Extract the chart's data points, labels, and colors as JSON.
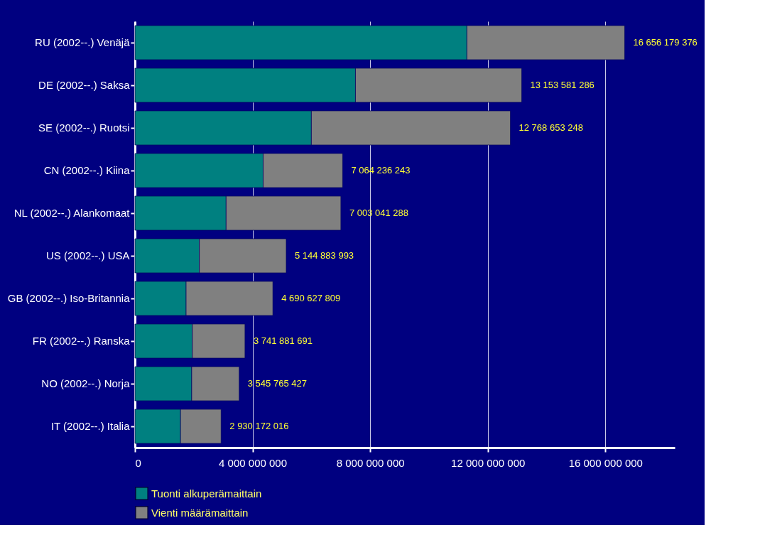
{
  "chart_data": {
    "type": "bar",
    "orientation": "horizontal",
    "stacked": true,
    "categories": [
      "RU (2002--.) Venäjä",
      "DE (2002--.) Saksa",
      "SE (2002--.) Ruotsi",
      "CN (2002--.) Kiina",
      "NL (2002--.) Alankomaat",
      "US (2002--.) USA",
      "GB (2002--.) Iso-Britannia",
      "FR (2002--.) Ranska",
      "NO (2002--.) Norja",
      "IT (2002--.) Italia"
    ],
    "series": [
      {
        "name": "Tuonti alkuperämaittain",
        "color": "#008080",
        "values": [
          11290000000,
          7500000000,
          6000000000,
          4360000000,
          3100000000,
          2190000000,
          1740000000,
          1950000000,
          1930000000,
          1550000000
        ]
      },
      {
        "name": "Vienti määrämaittain",
        "color": "#808080",
        "values": [
          5366179376,
          5653581286,
          6768653248,
          2704236243,
          3903041288,
          2954883993,
          2950627809,
          1791881691,
          1615765427,
          1380172016
        ]
      }
    ],
    "totals": [
      "16 656 179 376",
      "13 153 581 286",
      "12 768 653 248",
      "7 064 236 243",
      "7 003 041 288",
      "5 144 883 993",
      "4 690 627 809",
      "3 741 881 691",
      "3 545 765 427",
      "2 930 172 016"
    ],
    "xlim": [
      0,
      18360000000
    ],
    "xticks": [
      {
        "value": 0,
        "label": "0"
      },
      {
        "value": 4000000000,
        "label": "4 000 000 000"
      },
      {
        "value": 8000000000,
        "label": "8 000 000 000"
      },
      {
        "value": 12000000000,
        "label": "12 000 000 000"
      },
      {
        "value": 16000000000,
        "label": "16 000 000 000"
      }
    ],
    "grid": "x",
    "legend": "bottom left"
  }
}
